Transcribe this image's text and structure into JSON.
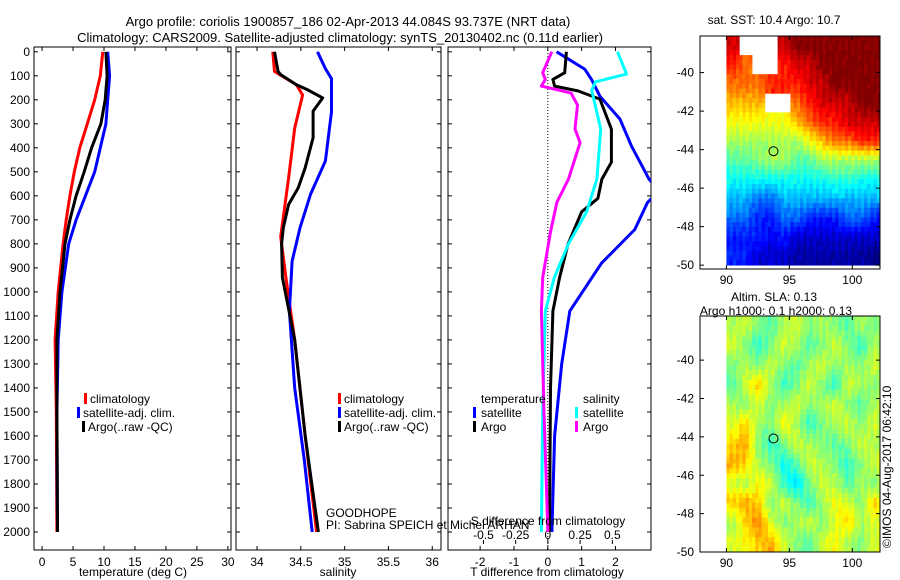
{
  "header": {
    "title_line1": "Argo profile: coriolis 1900857_186 02-Apr-2013 44.084S 93.737E (NRT data)",
    "title_line2": "Climatology: CARS2009. Satellite-adjusted climatology: synTS_20130402.nc (0.11d earlier)"
  },
  "footer": {
    "project": "GOODHOPE",
    "pi": "PI: Sabrina SPEICH et Michel ARHAN",
    "copyright": "©IMOS 04-Aug-2017 06:42:10"
  },
  "colors": {
    "climatology": "#ff0000",
    "satellite": "#0000ff",
    "argo": "#000000",
    "sal_satellite": "#00ffff",
    "sal_argo": "#ff00ff"
  },
  "chart_data": [
    {
      "type": "line",
      "id": "temperature",
      "xlabel": "temperature (deg C)",
      "ylabel": "",
      "xlim": [
        -1.3,
        30.5
      ],
      "ylim": [
        2075,
        -20
      ],
      "xticks": [
        0,
        5,
        10,
        15,
        20,
        25,
        30
      ],
      "yticks": [
        0,
        100,
        200,
        300,
        400,
        500,
        600,
        700,
        800,
        900,
        1000,
        1100,
        1200,
        1300,
        1400,
        1500,
        1600,
        1700,
        1800,
        1900,
        2000
      ],
      "legend": [
        "climatology",
        "satellite-adj. clim.",
        "Argo(..raw -QC)"
      ],
      "series": [
        {
          "name": "climatology",
          "color": "#ff0000",
          "depth": [
            0,
            100,
            200,
            300,
            400,
            500,
            600,
            700,
            800,
            1000,
            1200,
            1500,
            2000
          ],
          "values": [
            9.8,
            9.4,
            8.5,
            7.3,
            6.1,
            5.2,
            4.5,
            3.9,
            3.4,
            2.6,
            2.1,
            2.3,
            2.4
          ]
        },
        {
          "name": "satellite-adj. clim.",
          "color": "#0000ff",
          "depth": [
            0,
            100,
            200,
            300,
            400,
            500,
            600,
            700,
            800,
            1000,
            1200,
            1500,
            2000
          ],
          "values": [
            10.6,
            10.9,
            10.6,
            10.3,
            9.4,
            8.5,
            7.0,
            5.5,
            4.3,
            3.2,
            2.6,
            2.4,
            2.5
          ]
        },
        {
          "name": "Argo(..raw -QC)",
          "color": "#000000",
          "depth": [
            0,
            100,
            200,
            300,
            400,
            500,
            600,
            700,
            800,
            1000,
            1200,
            1500,
            2000
          ],
          "values": [
            10.3,
            10.5,
            10.2,
            9.5,
            8.0,
            6.8,
            5.5,
            4.5,
            3.7,
            2.9,
            2.4,
            2.4,
            2.5
          ]
        }
      ]
    },
    {
      "type": "line",
      "id": "salinity",
      "xlabel": "salinity",
      "xlim": [
        33.76,
        36.1
      ],
      "ylim": [
        2075,
        -20
      ],
      "xticks": [
        34,
        34.5,
        35,
        35.5,
        36
      ],
      "legend": [
        "climatology",
        "satellite-adj. clim.",
        "Argo(..raw -QC)"
      ],
      "series": [
        {
          "name": "climatology",
          "color": "#ff0000",
          "depth": [
            0,
            82,
            137,
            180,
            318,
            525,
            770,
            940,
            1200,
            1600,
            2000
          ],
          "values": [
            34.18,
            34.2,
            34.45,
            34.52,
            34.43,
            34.36,
            34.27,
            34.33,
            34.43,
            34.55,
            34.68
          ]
        },
        {
          "name": "satellite-adj. clim.",
          "color": "#0000ff",
          "depth": [
            0,
            70,
            112,
            250,
            455,
            594,
            733,
            872,
            1080,
            1400,
            1700,
            2000
          ],
          "values": [
            34.69,
            34.78,
            34.85,
            34.85,
            34.78,
            34.61,
            34.49,
            34.4,
            34.37,
            34.43,
            34.54,
            34.63
          ]
        },
        {
          "name": "Argo(..raw -QC)",
          "color": "#000000",
          "depth": [
            0,
            82,
            95,
            137,
            157,
            192,
            247,
            358,
            483,
            567,
            636,
            733,
            800,
            940,
            1200,
            1600,
            2000
          ],
          "values": [
            34.2,
            34.24,
            34.27,
            34.45,
            34.57,
            34.75,
            34.64,
            34.64,
            34.55,
            34.47,
            34.36,
            34.3,
            34.28,
            34.29,
            34.43,
            34.55,
            34.7
          ]
        }
      ]
    },
    {
      "type": "line",
      "id": "differences",
      "xlabel": "T difference from climatology",
      "xlabel2": "S difference from climatology",
      "xlim": [
        -2.95,
        3.05
      ],
      "xlim2": [
        -0.775,
        0.8
      ],
      "ylim": [
        2075,
        -20
      ],
      "xticks": [
        -2,
        -1,
        0,
        1,
        2
      ],
      "xticks2": [
        -0.5,
        -0.25,
        0,
        0.25,
        0.5
      ],
      "legend_titles": [
        "temperature",
        "salinity"
      ],
      "legend": [
        "satellite",
        "Argo",
        "satellite",
        "Argo"
      ],
      "series": [
        {
          "name": "temperature satellite",
          "axis": "T",
          "color": "#0000ff",
          "depth": [
            0,
            72,
            115,
            185,
            280,
            392,
            530,
            580,
            627,
            740,
            880,
            1080,
            1300,
            1600,
            2000
          ],
          "values": [
            0.26,
            1.09,
            1.29,
            1.54,
            2.13,
            2.47,
            2.99,
            3.3,
            2.95,
            2.57,
            1.59,
            0.65,
            0.41,
            0.2,
            0.12
          ]
        },
        {
          "name": "temperature Argo",
          "axis": "T",
          "color": "#000000",
          "depth": [
            0,
            87,
            115,
            143,
            163,
            197,
            322,
            460,
            530,
            610,
            667,
            800,
            940,
            1080,
            1400,
            2000
          ],
          "values": [
            0.55,
            0.5,
            0.15,
            0.2,
            0.89,
            1.54,
            1.88,
            1.88,
            1.6,
            1.48,
            1.0,
            0.6,
            0.35,
            0.15,
            0.08,
            0.05
          ]
        },
        {
          "name": "salinity satellite",
          "axis": "S",
          "color": "#00ffff",
          "depth": [
            0,
            93,
            125,
            160,
            322,
            530,
            667,
            800,
            940,
            1080,
            1500,
            2000
          ],
          "values": [
            0.54,
            0.61,
            0.37,
            0.34,
            0.41,
            0.38,
            0.3,
            0.16,
            0.05,
            -0.02,
            -0.04,
            -0.05
          ]
        },
        {
          "name": "salinity Argo",
          "axis": "S",
          "color": "#ff00ff",
          "depth": [
            0,
            87,
            115,
            143,
            172,
            222,
            322,
            378,
            530,
            627,
            750,
            940,
            1080,
            1500,
            2000
          ],
          "values": [
            0.03,
            -0.04,
            -0.02,
            -0.05,
            0.18,
            0.23,
            0.21,
            0.25,
            0.16,
            0.07,
            0.02,
            -0.04,
            -0.05,
            -0.03,
            0.0
          ]
        }
      ]
    },
    {
      "type": "heatmap",
      "id": "sst-map",
      "title": "sat. SST: 10.4 Argo: 10.7",
      "xlim": [
        87.9,
        102.2
      ],
      "ylim": [
        -50.2,
        -38.1
      ],
      "xticks": [
        90,
        95,
        100
      ],
      "yticks": [
        -40,
        -42,
        -44,
        -46,
        -48,
        -50
      ],
      "data_lon": [
        90,
        102.2
      ],
      "data_lat": [
        -50,
        -38.1
      ],
      "color_range": [
        3,
        16
      ],
      "argo_position": {
        "lon": 93.737,
        "lat": -44.084
      },
      "grid": [
        [
          15,
          null,
          null,
          null,
          15,
          16,
          16,
          16,
          16,
          16,
          16,
          16
        ],
        [
          14,
          13,
          null,
          null,
          14,
          15,
          15,
          16,
          16,
          16,
          16,
          16
        ],
        [
          13,
          13,
          13,
          14,
          14,
          14,
          15,
          15,
          16,
          16,
          16,
          16
        ],
        [
          12,
          12,
          12,
          null,
          null,
          13,
          14,
          15,
          15,
          15,
          16,
          16
        ],
        [
          11,
          11,
          11,
          11,
          11,
          12,
          13,
          14,
          14,
          15,
          15,
          15
        ],
        [
          10,
          10,
          10,
          10,
          10,
          10,
          11,
          12,
          13,
          13,
          14,
          14
        ],
        [
          9,
          9,
          9.5,
          10,
          10,
          9,
          9,
          10,
          10,
          10,
          10,
          10
        ],
        [
          8,
          8,
          8,
          8,
          8,
          8,
          8,
          8,
          8.5,
          8.5,
          8,
          8
        ],
        [
          7,
          7,
          6,
          6,
          7,
          7,
          7,
          7,
          7,
          7,
          7,
          7
        ],
        [
          6,
          6,
          5,
          5,
          6,
          6,
          5,
          5,
          5,
          6,
          6,
          5
        ],
        [
          5,
          5,
          5,
          4.5,
          5,
          4,
          4,
          4,
          4,
          4,
          4,
          4
        ],
        [
          5,
          5,
          4,
          4,
          4,
          3.5,
          3.5,
          3.5,
          3.5,
          3.5,
          3.5,
          3
        ]
      ]
    },
    {
      "type": "heatmap",
      "id": "sla-map",
      "title": "Altim. SLA: 0.13",
      "subtitle": "Argo h1000: 0.1 h2000: 0.13",
      "xlim": [
        87.9,
        102.2
      ],
      "ylim": [
        -50,
        -37.7
      ],
      "xticks": [
        90,
        95,
        100
      ],
      "yticks": [
        -40,
        -42,
        -44,
        -46,
        -48,
        -50
      ],
      "data_lon": [
        90,
        102.2
      ],
      "data_lat": [
        -50,
        -37.7
      ],
      "color_range": [
        -0.6,
        0.6
      ],
      "argo_position": {
        "lon": 93.737,
        "lat": -44.084
      },
      "grid": [
        [
          0.05,
          0.1,
          0.0,
          -0.05,
          0.05,
          0.1,
          0.0,
          0.05,
          0.0,
          -0.05,
          0.05,
          0.0
        ],
        [
          0.1,
          0.0,
          -0.1,
          0.0,
          0.1,
          0.05,
          -0.05,
          0.0,
          0.1,
          0.0,
          -0.1,
          0.05
        ],
        [
          0.0,
          0.05,
          0.0,
          0.1,
          0.0,
          -0.05,
          0.05,
          0.1,
          0.0,
          0.05,
          0.0,
          0.1
        ],
        [
          -0.05,
          0.1,
          0.2,
          0.05,
          -0.1,
          0.0,
          0.1,
          0.0,
          -0.1,
          0.1,
          0.05,
          0.0
        ],
        [
          0.05,
          0.0,
          0.1,
          0.0,
          0.05,
          0.1,
          0.0,
          0.05,
          0.1,
          0.0,
          -0.05,
          0.05
        ],
        [
          0.1,
          0.2,
          0.05,
          0.0,
          0.15,
          0.05,
          -0.1,
          0.0,
          0.05,
          0.1,
          0.0,
          0.1
        ],
        [
          0.2,
          0.25,
          0.0,
          -0.1,
          0.0,
          0.1,
          0.05,
          0.0,
          -0.05,
          0.0,
          0.1,
          0.05
        ],
        [
          0.25,
          0.2,
          0.05,
          0.0,
          -0.15,
          -0.05,
          0.1,
          0.05,
          0.0,
          -0.1,
          0.0,
          0.1
        ],
        [
          0.1,
          0.05,
          0.15,
          0.1,
          -0.1,
          -0.2,
          0.0,
          0.1,
          0.05,
          -0.05,
          0.05,
          0.0
        ],
        [
          0.2,
          0.25,
          0.2,
          0.0,
          0.1,
          0.0,
          -0.1,
          0.05,
          0.15,
          0.1,
          0.0,
          0.2
        ],
        [
          0.05,
          0.2,
          0.3,
          0.1,
          0.0,
          0.05,
          0.1,
          0.0,
          0.1,
          0.2,
          0.05,
          0.1
        ],
        [
          0.1,
          0.15,
          0.2,
          0.25,
          0.1,
          0.0,
          -0.05,
          0.1,
          0.15,
          0.05,
          0.0,
          0.1
        ]
      ]
    }
  ]
}
